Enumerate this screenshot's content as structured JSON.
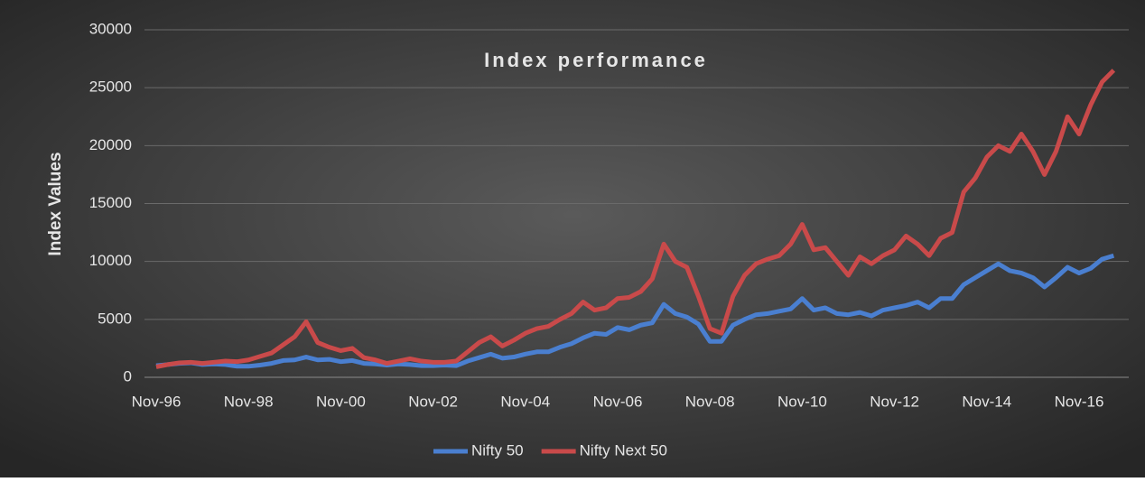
{
  "chart_data": {
    "type": "line",
    "title": "Index performance",
    "y_label": "Index Values",
    "categories": [
      "Nov-96",
      null,
      null,
      null,
      null,
      null,
      null,
      null,
      "Nov-98",
      null,
      null,
      null,
      null,
      null,
      null,
      null,
      "Nov-00",
      null,
      null,
      null,
      null,
      null,
      null,
      null,
      "Nov-02",
      null,
      null,
      null,
      null,
      null,
      null,
      null,
      "Nov-04",
      null,
      null,
      null,
      null,
      null,
      null,
      null,
      "Nov-06",
      null,
      null,
      null,
      null,
      null,
      null,
      null,
      "Nov-08",
      null,
      null,
      null,
      null,
      null,
      null,
      null,
      "Nov-10",
      null,
      null,
      null,
      null,
      null,
      null,
      null,
      "Nov-12",
      null,
      null,
      null,
      null,
      null,
      null,
      null,
      "Nov-14",
      null,
      null,
      null,
      null,
      null,
      null,
      null,
      "Nov-16",
      null,
      null,
      null
    ],
    "series": [
      {
        "name": "Nifty 50",
        "color": "#4a7fd0",
        "values": [
          1000,
          1100,
          1200,
          1250,
          1100,
          1150,
          1100,
          950,
          950,
          1050,
          1200,
          1450,
          1500,
          1750,
          1500,
          1550,
          1350,
          1450,
          1200,
          1150,
          1050,
          1150,
          1100,
          1000,
          1000,
          1050,
          1000,
          1400,
          1700,
          2000,
          1650,
          1750,
          2000,
          2200,
          2200,
          2600,
          2900,
          3400,
          3800,
          3700,
          4300,
          4100,
          4500,
          4700,
          6300,
          5500,
          5200,
          4600,
          3100,
          3100,
          4500,
          5000,
          5400,
          5500,
          5700,
          5900,
          6800,
          5800,
          6000,
          5500,
          5400,
          5600,
          5300,
          5800,
          6000,
          6200,
          6500,
          6000,
          6800,
          6800,
          8000,
          8600,
          9200,
          9800,
          9200,
          9000,
          8600,
          7800,
          8600,
          9500,
          9000,
          9400,
          10200,
          10500
        ]
      },
      {
        "name": "Nifty Next 50",
        "color": "#c94a4a",
        "values": [
          900,
          1100,
          1250,
          1300,
          1200,
          1300,
          1400,
          1350,
          1500,
          1800,
          2100,
          2800,
          3500,
          4800,
          3000,
          2600,
          2300,
          2500,
          1700,
          1500,
          1200,
          1400,
          1600,
          1400,
          1300,
          1300,
          1400,
          2200,
          3000,
          3500,
          2700,
          3200,
          3800,
          4200,
          4400,
          5000,
          5500,
          6500,
          5800,
          6000,
          6800,
          6900,
          7400,
          8500,
          11500,
          10000,
          9500,
          7000,
          4200,
          3800,
          7000,
          8800,
          9800,
          10200,
          10500,
          11500,
          13200,
          11000,
          11200,
          10000,
          8800,
          10400,
          9800,
          10500,
          11000,
          12200,
          11500,
          10500,
          12000,
          12500,
          16000,
          17200,
          19000,
          20000,
          19500,
          21000,
          19500,
          17500,
          19500,
          22500,
          21000,
          23500,
          25500,
          26500
        ]
      }
    ],
    "ylim": [
      0,
      30000
    ],
    "yticks": [
      0,
      5000,
      10000,
      15000,
      20000,
      25000,
      30000
    ],
    "grid": true,
    "legend": "bottom"
  }
}
